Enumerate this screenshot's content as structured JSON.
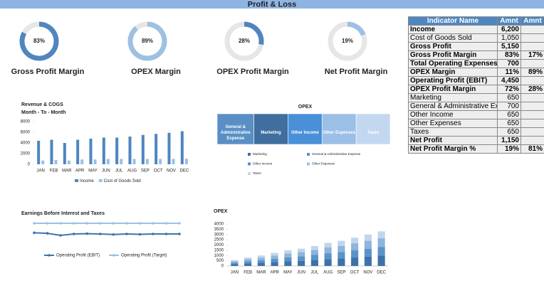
{
  "header": {
    "title": "Profit & Loss"
  },
  "chart_data": [
    {
      "type": "donut",
      "title": "Gross Profit Margin",
      "values": [
        83
      ],
      "value_labels": [
        "83%"
      ],
      "color": "#4f86bf"
    },
    {
      "type": "donut",
      "title": "OPEX Margin",
      "values": [
        89
      ],
      "value_labels": [
        "89%"
      ],
      "color": "#9dc0e3"
    },
    {
      "type": "donut",
      "title": "OPEX Profit Margin",
      "values": [
        28
      ],
      "value_labels": [
        "28%"
      ],
      "color": "#4f86bf"
    },
    {
      "type": "donut",
      "title": "Net Profit Margin",
      "values": [
        19
      ],
      "value_labels": [
        "19%"
      ],
      "color": "#9dc0e3"
    },
    {
      "type": "bar",
      "title": "Revenue & COGS",
      "subtitle": "Month - To - Month",
      "categories": [
        "JAN",
        "FEB",
        "MAR",
        "APR",
        "MAY",
        "JUN",
        "JUL",
        "AUG",
        "SEP",
        "OCT",
        "NOV",
        "DEC"
      ],
      "series": [
        {
          "name": "Income",
          "color": "#4f86bf",
          "values": [
            4400,
            4600,
            4000,
            4600,
            4800,
            5000,
            5000,
            5200,
            5500,
            5700,
            5900,
            6200
          ]
        },
        {
          "name": "Cost of Goods Sold",
          "color": "#9dc0e3",
          "values": [
            700,
            800,
            700,
            900,
            900,
            1000,
            1000,
            1000,
            1000,
            1000,
            1000,
            1050
          ]
        }
      ],
      "ylim": [
        0,
        8000
      ],
      "yticks": [
        0,
        2000,
        4000,
        6000,
        8000
      ],
      "legend": "bottom"
    },
    {
      "type": "treemap",
      "title": "OPEX",
      "categories": [
        "General & Administrative Expense",
        "Marketing",
        "Other Income",
        "Other Expenses",
        "Taxes"
      ],
      "values": [
        700,
        650,
        650,
        650,
        650
      ],
      "colors": [
        "#5a8fc6",
        "#3f6e9f",
        "#4a90d9",
        "#9bbfe6",
        "#c3d8f0"
      ],
      "legend": "bottom"
    },
    {
      "type": "line",
      "title": "Earnings Before Interest and Taxes",
      "series": [
        {
          "name": "Operating Profit (EBIT)",
          "color": "#3e74ad",
          "values": [
            4450,
            4420,
            4300,
            4380,
            4400,
            4380,
            4350,
            4380,
            4360,
            4380,
            4380,
            4380
          ]
        },
        {
          "name": "Operating Profit (Target)",
          "color": "#9dc0e3",
          "values": [
            5000,
            5000,
            5000,
            5000,
            5000,
            5000,
            5000,
            5000,
            5000,
            5000,
            5000,
            5000
          ]
        }
      ],
      "legend": "bottom"
    },
    {
      "type": "stacked_bar",
      "title": "OPEX",
      "categories": [
        "JAN",
        "FEB",
        "MAR",
        "APR",
        "MAY",
        "JUN",
        "JUL",
        "AUG",
        "SEP",
        "OCT",
        "NOV",
        "DEC"
      ],
      "series": [
        {
          "color": "#3d72a8",
          "values": [
            170,
            240,
            300,
            380,
            450,
            500,
            570,
            660,
            720,
            810,
            900,
            990
          ]
        },
        {
          "color": "#5b93c9",
          "values": [
            140,
            200,
            250,
            310,
            380,
            410,
            480,
            550,
            600,
            680,
            750,
            830
          ]
        },
        {
          "color": "#8db5dd",
          "values": [
            130,
            200,
            250,
            310,
            370,
            410,
            470,
            550,
            600,
            670,
            750,
            820
          ]
        },
        {
          "color": "#bfd6ee",
          "values": [
            110,
            160,
            200,
            250,
            300,
            330,
            380,
            440,
            480,
            540,
            600,
            660
          ]
        }
      ],
      "ylim": [
        0,
        4000
      ],
      "yticks": [
        0,
        500,
        1000,
        1500,
        2000,
        2500,
        3000,
        3500,
        4000
      ]
    }
  ],
  "table": {
    "columns": [
      "Indicator Name",
      "Amnt",
      "Amnt"
    ],
    "rows": [
      {
        "name": "Income",
        "amount": "6,200",
        "bold": true
      },
      {
        "name": "Cost of Goods Sold",
        "amount": "1,050"
      },
      {
        "name": "Gross Profit",
        "amount": "5,150",
        "bold": true
      },
      {
        "name": "Gross Profit Margin",
        "amount": "83%",
        "share": "17%",
        "bold": true
      },
      {
        "name": "Total Operating Expenses",
        "amount": "700",
        "bold": true
      },
      {
        "name": "OPEX Margin",
        "amount": "11%",
        "share": "89%",
        "bold": true
      },
      {
        "name": "Operating Profit (EBIT)",
        "amount": "4,450",
        "bold": true
      },
      {
        "name": "OPEX Profit Margin",
        "amount": "72%",
        "share": "28%",
        "bold": true
      },
      {
        "name": "Marketing",
        "amount": "650"
      },
      {
        "name": "General & Administrative Expense",
        "amount": "700"
      },
      {
        "name": "Other Income",
        "amount": "650"
      },
      {
        "name": "Other Expenses",
        "amount": "650"
      },
      {
        "name": "Taxes",
        "amount": "650"
      },
      {
        "name": "Net Profit",
        "amount": "1,150",
        "bold": true
      },
      {
        "name": "Net Profit Margin %",
        "amount": "19%",
        "share": "81%",
        "bold": true
      }
    ]
  }
}
